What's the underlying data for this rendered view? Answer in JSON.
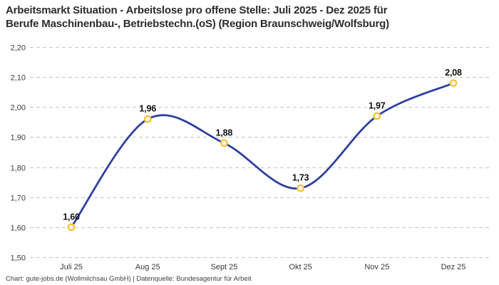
{
  "header": {
    "title_line1": "Arbeitsmarkt Situation - Arbeitslose pro offene Stelle: Juli 2025 - Dez 2025 für",
    "title_line2": "Berufe Maschinenbau-, Betriebstechn.(oS) (Region Braunschweig/Wolfsburg)"
  },
  "footer": {
    "attribution": "Chart: gute-jobs.de (Wollmilchsau GmbH) | Datenquelle: Bundesagentur für Arbeit"
  },
  "chart_data": {
    "type": "line",
    "title": "Arbeitsmarkt Situation - Arbeitslose pro offene Stelle: Juli 2025 - Dez 2025 für Berufe Maschinenbau-, Betriebstechn.(oS) (Region Braunschweig/Wolfsburg)",
    "categories": [
      "Juli 25",
      "Aug 25",
      "Sept 25",
      "Okt 25",
      "Nov 25",
      "Dez 25"
    ],
    "values": [
      1.6,
      1.96,
      1.88,
      1.73,
      1.97,
      2.08
    ],
    "value_labels": [
      "1,60",
      "1,96",
      "1,88",
      "1,73",
      "1,97",
      "2,08"
    ],
    "ylim": [
      1.5,
      2.2
    ],
    "y_ticks": [
      {
        "value": 2.2,
        "label": "2,20"
      },
      {
        "value": 2.1,
        "label": "2,10"
      },
      {
        "value": 2.0,
        "label": "2,00"
      },
      {
        "value": 1.9,
        "label": "1,90"
      },
      {
        "value": 1.8,
        "label": "1,80"
      },
      {
        "value": 1.7,
        "label": "1,70"
      },
      {
        "value": 1.6,
        "label": "1,60"
      },
      {
        "value": 1.5,
        "label": "1,50"
      }
    ],
    "grid": "horizontal-dashed",
    "legend": "none",
    "interpolation": "spline",
    "line_color": "#2b3e9e",
    "marker_ring_color": "#f9c33c",
    "marker_fill_color": "#ffffff",
    "grid_color": "#c6c6c6",
    "text_color": "#2d2d2d"
  }
}
